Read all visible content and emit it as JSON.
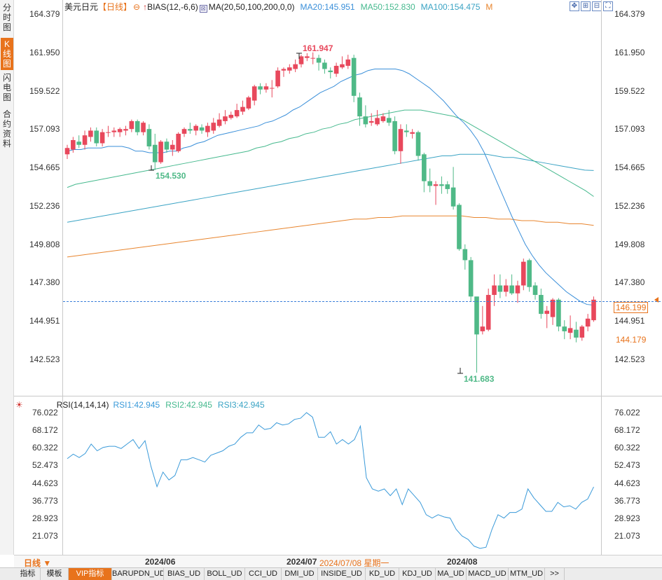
{
  "side_tabs": [
    "分时图",
    "K线图",
    "闪电图",
    "合约资料"
  ],
  "side_active": 1,
  "header": {
    "symbol": "美元日元",
    "period": "【日线】",
    "period_icon": "gear-icon",
    "bias_label": "BIAS(12,-6,6)",
    "ma_label": "MA(20,50,100,200,0,0)",
    "ma20": "MA20:145.951",
    "ma50": "MA50:152.830",
    "ma100": "MA100:154.475",
    "ma_more": "M"
  },
  "colors": {
    "up": "#e8485c",
    "down": "#4fb987",
    "ma20": "#3a8fd9",
    "ma50": "#46b98e",
    "ma100": "#3aa3c4",
    "ma200": "#e8852e",
    "rsi": "#3a9ad9",
    "accent": "#e8731c"
  },
  "toolbar_icons": [
    "crosshair-icon",
    "zoom-in-icon",
    "zoom-out-icon",
    "fullscreen-icon"
  ],
  "main_y_ticks": [
    "164.379",
    "161.950",
    "159.522",
    "157.093",
    "154.665",
    "152.236",
    "149.808",
    "147.380",
    "144.951",
    "142.523"
  ],
  "rsi_y_ticks": [
    "76.022",
    "68.172",
    "60.322",
    "52.473",
    "44.623",
    "36.773",
    "28.923",
    "21.073"
  ],
  "annotations": {
    "high": "161.947",
    "low_left": "154.530",
    "low_right": "141.683"
  },
  "price_tags": {
    "current": "146.199",
    "bottom": "144.179"
  },
  "rsi_header": {
    "label": "RSI(14,14,14)",
    "rsi1": "RSI1:42.945",
    "rsi2": "RSI2:42.945",
    "rsi3": "RSI3:42.945"
  },
  "date_bar": {
    "period_btn": "日线 ▼",
    "d1": "2024/06",
    "d2": "2024/07",
    "d2_sel": "2024/07/08 星期一",
    "d3": "2024/08"
  },
  "bottom_tabs": [
    "指标",
    "模板",
    "VIP指标",
    "BARUPDN_UD",
    "BIAS_UD",
    "BOLL_UD",
    "CCI_UD",
    "DMI_UD",
    "INSIDE_UD",
    "KD_UD",
    "KDJ_UD",
    "MA_UD",
    "MACD_UD",
    "MTM_UD",
    ">>"
  ],
  "chart_data": {
    "type": "candlestick",
    "title": "美元日元 日线",
    "x_ticks": [
      "2024/06",
      "2024/07",
      "2024/08"
    ],
    "y_ticks": [
      164.379,
      161.95,
      159.522,
      157.093,
      154.665,
      152.236,
      149.808,
      147.38,
      144.951,
      142.523
    ],
    "ylim": [
      141.0,
      164.6
    ],
    "candles": [
      {
        "o": 155.5,
        "c": 155.9,
        "h": 156.1,
        "l": 155.2
      },
      {
        "o": 155.8,
        "c": 156.4,
        "h": 156.6,
        "l": 155.6
      },
      {
        "o": 156.3,
        "c": 156.1,
        "h": 156.7,
        "l": 155.9
      },
      {
        "o": 156.1,
        "c": 156.7,
        "h": 157.0,
        "l": 155.8
      },
      {
        "o": 156.6,
        "c": 157.0,
        "h": 157.2,
        "l": 156.3
      },
      {
        "o": 157.0,
        "c": 156.2,
        "h": 157.2,
        "l": 156.0
      },
      {
        "o": 156.2,
        "c": 156.9,
        "h": 157.1,
        "l": 156.0
      },
      {
        "o": 156.9,
        "c": 156.9,
        "h": 157.3,
        "l": 156.6
      },
      {
        "o": 156.9,
        "c": 157.0,
        "h": 157.2,
        "l": 156.6
      },
      {
        "o": 156.9,
        "c": 157.1,
        "h": 157.2,
        "l": 156.6
      },
      {
        "o": 157.0,
        "c": 157.1,
        "h": 157.3,
        "l": 156.7
      },
      {
        "o": 157.1,
        "c": 157.6,
        "h": 157.7,
        "l": 156.9
      },
      {
        "o": 157.6,
        "c": 156.9,
        "h": 157.7,
        "l": 156.7
      },
      {
        "o": 156.9,
        "c": 157.5,
        "h": 157.6,
        "l": 156.7
      },
      {
        "o": 157.1,
        "c": 156.0,
        "h": 157.4,
        "l": 155.8
      },
      {
        "o": 156.1,
        "c": 155.0,
        "h": 156.8,
        "l": 154.5
      },
      {
        "o": 155.0,
        "c": 156.3,
        "h": 156.4,
        "l": 154.9
      },
      {
        "o": 156.3,
        "c": 155.8,
        "h": 156.5,
        "l": 155.6
      },
      {
        "o": 155.8,
        "c": 156.1,
        "h": 156.4,
        "l": 155.4
      },
      {
        "o": 155.7,
        "c": 156.8,
        "h": 156.9,
        "l": 155.6
      },
      {
        "o": 156.8,
        "c": 157.1,
        "h": 157.2,
        "l": 156.6
      },
      {
        "o": 157.1,
        "c": 157.0,
        "h": 157.5,
        "l": 156.8
      },
      {
        "o": 157.0,
        "c": 157.3,
        "h": 157.4,
        "l": 156.7
      },
      {
        "o": 157.2,
        "c": 157.0,
        "h": 157.4,
        "l": 156.8
      },
      {
        "o": 156.9,
        "c": 157.3,
        "h": 157.5,
        "l": 156.6
      },
      {
        "o": 157.0,
        "c": 157.5,
        "h": 157.8,
        "l": 156.8
      },
      {
        "o": 157.3,
        "c": 157.7,
        "h": 158.1,
        "l": 157.2
      },
      {
        "o": 157.6,
        "c": 157.9,
        "h": 158.3,
        "l": 157.4
      },
      {
        "o": 157.8,
        "c": 158.0,
        "h": 158.2,
        "l": 157.7
      },
      {
        "o": 157.9,
        "c": 158.3,
        "h": 158.7,
        "l": 157.8
      },
      {
        "o": 158.2,
        "c": 158.5,
        "h": 158.9,
        "l": 158.0
      },
      {
        "o": 158.4,
        "c": 159.1,
        "h": 159.2,
        "l": 158.3
      },
      {
        "o": 158.9,
        "c": 159.8,
        "h": 159.9,
        "l": 158.6
      },
      {
        "o": 159.8,
        "c": 159.6,
        "h": 160.0,
        "l": 159.3
      },
      {
        "o": 159.6,
        "c": 159.8,
        "h": 160.0,
        "l": 159.4
      },
      {
        "o": 159.7,
        "c": 159.7,
        "h": 160.2,
        "l": 159.1
      },
      {
        "o": 159.8,
        "c": 160.8,
        "h": 161.0,
        "l": 159.7
      },
      {
        "o": 160.8,
        "c": 160.9,
        "h": 161.0,
        "l": 160.4
      },
      {
        "o": 160.8,
        "c": 161.0,
        "h": 161.2,
        "l": 160.6
      },
      {
        "o": 160.9,
        "c": 161.2,
        "h": 161.5,
        "l": 160.7
      },
      {
        "o": 161.2,
        "c": 161.7,
        "h": 161.8,
        "l": 161.0
      },
      {
        "o": 161.6,
        "c": 161.7,
        "h": 161.9,
        "l": 161.4
      },
      {
        "o": 161.6,
        "c": 161.6,
        "h": 161.95,
        "l": 161.2
      },
      {
        "o": 161.6,
        "c": 161.3,
        "h": 161.8,
        "l": 160.8
      },
      {
        "o": 161.3,
        "c": 160.9,
        "h": 161.5,
        "l": 160.6
      },
      {
        "o": 160.8,
        "c": 160.7,
        "h": 161.0,
        "l": 160.3
      },
      {
        "o": 160.6,
        "c": 161.1,
        "h": 161.3,
        "l": 160.4
      },
      {
        "o": 161.0,
        "c": 161.2,
        "h": 161.7,
        "l": 160.9
      },
      {
        "o": 161.1,
        "c": 161.5,
        "h": 161.8,
        "l": 160.9
      },
      {
        "o": 161.6,
        "c": 159.2,
        "h": 161.8,
        "l": 158.8
      },
      {
        "o": 159.1,
        "c": 157.9,
        "h": 159.4,
        "l": 157.3
      },
      {
        "o": 157.9,
        "c": 157.4,
        "h": 158.6,
        "l": 157.2
      },
      {
        "o": 157.5,
        "c": 157.6,
        "h": 158.1,
        "l": 157.3
      },
      {
        "o": 157.4,
        "c": 157.8,
        "h": 158.3,
        "l": 157.3
      },
      {
        "o": 157.6,
        "c": 157.9,
        "h": 158.1,
        "l": 157.5
      },
      {
        "o": 157.8,
        "c": 157.5,
        "h": 158.3,
        "l": 157.3
      },
      {
        "o": 157.6,
        "c": 155.7,
        "h": 157.9,
        "l": 155.5
      },
      {
        "o": 155.7,
        "c": 157.1,
        "h": 157.4,
        "l": 154.9
      },
      {
        "o": 157.0,
        "c": 156.9,
        "h": 157.4,
        "l": 156.6
      },
      {
        "o": 156.8,
        "c": 156.9,
        "h": 157.1,
        "l": 156.5
      },
      {
        "o": 156.9,
        "c": 155.4,
        "h": 157.0,
        "l": 155.1
      },
      {
        "o": 155.5,
        "c": 153.8,
        "h": 155.6,
        "l": 153.1
      },
      {
        "o": 153.8,
        "c": 153.5,
        "h": 154.6,
        "l": 153.1
      },
      {
        "o": 153.5,
        "c": 153.6,
        "h": 153.8,
        "l": 152.3
      },
      {
        "o": 153.6,
        "c": 153.5,
        "h": 154.1,
        "l": 153.0
      },
      {
        "o": 153.6,
        "c": 153.3,
        "h": 153.8,
        "l": 153.0
      },
      {
        "o": 153.4,
        "c": 152.2,
        "h": 154.7,
        "l": 152.0
      },
      {
        "o": 152.3,
        "c": 149.5,
        "h": 152.4,
        "l": 149.4
      },
      {
        "o": 149.5,
        "c": 148.8,
        "h": 149.8,
        "l": 148.2
      },
      {
        "o": 148.8,
        "c": 146.5,
        "h": 149.0,
        "l": 146.2
      },
      {
        "o": 146.5,
        "c": 144.1,
        "h": 146.4,
        "l": 141.683
      },
      {
        "o": 144.3,
        "c": 144.6,
        "h": 145.9,
        "l": 144.1
      },
      {
        "o": 144.4,
        "c": 146.6,
        "h": 147.0,
        "l": 144.3
      },
      {
        "o": 146.6,
        "c": 147.2,
        "h": 147.9,
        "l": 145.9
      },
      {
        "o": 147.2,
        "c": 146.8,
        "h": 147.9,
        "l": 146.4
      },
      {
        "o": 146.8,
        "c": 147.2,
        "h": 147.6,
        "l": 146.5
      },
      {
        "o": 147.2,
        "c": 146.7,
        "h": 147.9,
        "l": 146.6
      },
      {
        "o": 146.7,
        "c": 147.2,
        "h": 147.5,
        "l": 146.1
      },
      {
        "o": 147.2,
        "c": 148.7,
        "h": 148.9,
        "l": 146.9
      },
      {
        "o": 148.8,
        "c": 147.1,
        "h": 148.9,
        "l": 146.8
      },
      {
        "o": 147.2,
        "c": 146.6,
        "h": 147.4,
        "l": 146.3
      },
      {
        "o": 146.6,
        "c": 145.4,
        "h": 147.0,
        "l": 145.1
      },
      {
        "o": 145.4,
        "c": 145.6,
        "h": 145.9,
        "l": 144.5
      },
      {
        "o": 145.2,
        "c": 146.3,
        "h": 146.4,
        "l": 144.7
      },
      {
        "o": 146.3,
        "c": 144.6,
        "h": 146.4,
        "l": 144.3
      },
      {
        "o": 144.6,
        "c": 144.3,
        "h": 145.0,
        "l": 143.8
      },
      {
        "o": 144.2,
        "c": 144.5,
        "h": 145.3,
        "l": 143.8
      },
      {
        "o": 144.4,
        "c": 143.9,
        "h": 144.9,
        "l": 143.6
      },
      {
        "o": 143.9,
        "c": 144.6,
        "h": 144.7,
        "l": 143.7
      },
      {
        "o": 144.6,
        "c": 145.1,
        "h": 145.4,
        "l": 144.3
      },
      {
        "o": 145.0,
        "c": 146.3,
        "h": 146.5,
        "l": 144.9
      }
    ],
    "ma20": [
      155.7,
      155.8,
      155.8,
      155.9,
      155.9,
      155.9,
      156.0,
      156.0,
      156.0,
      155.9,
      155.7,
      155.7,
      155.6,
      155.6,
      155.6,
      155.7,
      155.7,
      155.9,
      156.0,
      156.2,
      156.3,
      156.5,
      156.7,
      156.8,
      156.9,
      157.0,
      157.1,
      157.2,
      157.3,
      157.5,
      157.6,
      157.8,
      158.0,
      158.3,
      158.5,
      158.8,
      159.1,
      159.4,
      159.6,
      159.8,
      160.1,
      160.3,
      160.5,
      160.6,
      160.8,
      160.9,
      160.9,
      160.9,
      160.9,
      160.8,
      160.6,
      160.3,
      160.0,
      159.7,
      159.3,
      158.9,
      158.4,
      157.9,
      157.5,
      157.0,
      156.4,
      155.6,
      154.6,
      153.6,
      152.6,
      151.6,
      150.7,
      149.8,
      149.1,
      148.5,
      148.0,
      147.6,
      147.2,
      146.8,
      146.5,
      146.2,
      146.0,
      145.951
    ],
    "ma50": [
      153.4,
      153.6,
      153.7,
      153.8,
      153.9,
      154.0,
      154.1,
      154.2,
      154.3,
      154.4,
      154.5,
      154.6,
      154.7,
      154.8,
      154.9,
      155.0,
      155.1,
      155.2,
      155.3,
      155.4,
      155.5,
      155.6,
      155.7,
      155.9,
      156.0,
      156.2,
      156.3,
      156.5,
      156.6,
      156.8,
      156.9,
      157.1,
      157.2,
      157.4,
      157.5,
      157.7,
      157.8,
      157.9,
      158.0,
      158.1,
      158.2,
      158.3,
      158.3,
      158.3,
      158.2,
      158.1,
      158.0,
      157.9,
      157.7,
      157.4,
      157.1,
      156.8,
      156.5,
      156.2,
      155.9,
      155.6,
      155.3,
      155.0,
      154.7,
      154.4,
      154.1,
      153.8,
      153.5,
      153.2,
      152.83
    ],
    "ma100": [
      151.2,
      151.3,
      151.4,
      151.5,
      151.6,
      151.7,
      151.8,
      151.9,
      152.0,
      152.1,
      152.2,
      152.3,
      152.4,
      152.5,
      152.6,
      152.7,
      152.8,
      152.9,
      153.0,
      153.1,
      153.2,
      153.3,
      153.4,
      153.5,
      153.6,
      153.7,
      153.8,
      153.9,
      154.0,
      154.1,
      154.2,
      154.3,
      154.4,
      154.5,
      154.6,
      154.7,
      154.8,
      154.9,
      155.0,
      155.1,
      155.2,
      155.3,
      155.4,
      155.4,
      155.5,
      155.5,
      155.5,
      155.5,
      155.4,
      155.3,
      155.3,
      155.2,
      155.1,
      155.0,
      154.9,
      154.8,
      154.7,
      154.6,
      154.5,
      154.475
    ],
    "ma200": [
      149.0,
      149.1,
      149.2,
      149.3,
      149.4,
      149.5,
      149.6,
      149.7,
      149.8,
      149.9,
      150.0,
      150.1,
      150.2,
      150.3,
      150.4,
      150.5,
      150.6,
      150.7,
      150.8,
      150.9,
      151.0,
      151.1,
      151.2,
      151.3,
      151.4,
      151.4,
      151.5,
      151.5,
      151.6,
      151.6,
      151.6,
      151.6,
      151.6,
      151.6,
      151.5,
      151.5,
      151.4,
      151.4,
      151.3,
      151.3,
      151.2,
      151.2,
      151.1,
      151.1,
      151.0
    ],
    "rsi": {
      "ylim": [
        15.0,
        78.0
      ],
      "y_ticks": [
        76.022,
        68.172,
        60.322,
        52.473,
        44.623,
        36.773,
        28.923,
        21.073
      ],
      "values": [
        55.5,
        57.5,
        56.0,
        57.8,
        62.0,
        59.0,
        60.5,
        61.0,
        61.0,
        60.0,
        62.0,
        64.0,
        60.0,
        63.5,
        52.0,
        43.0,
        49.5,
        46.0,
        48.0,
        55.0,
        55.0,
        56.0,
        55.0,
        54.0,
        57.0,
        58.0,
        59.0,
        61.0,
        62.0,
        65.0,
        67.0,
        67.0,
        70.5,
        68.5,
        69.0,
        71.5,
        70.5,
        71.0,
        73.0,
        73.5,
        76.0,
        74.0,
        65.0,
        65.0,
        67.5,
        62.0,
        64.0,
        62.0,
        64.0,
        70.0,
        47.0,
        42.0,
        41.0,
        42.0,
        39.0,
        42.0,
        35.0,
        42.0,
        39.0,
        36.0,
        30.5,
        29.0,
        30.5,
        29.5,
        29.0,
        24.0,
        21.0,
        19.5,
        16.5,
        15.5,
        16.0,
        24.0,
        30.5,
        29.0,
        31.5,
        31.5,
        33.0,
        42.0,
        38.0,
        35.0,
        32.0,
        32.0,
        36.0,
        34.0,
        34.5,
        33.0,
        36.0,
        37.5,
        42.9
      ]
    }
  }
}
